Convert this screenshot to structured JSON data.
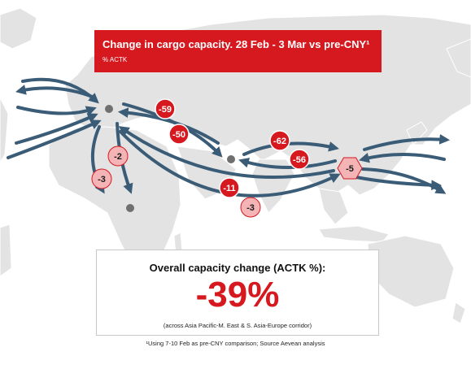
{
  "title": "Change in cargo capacity. 28 Feb - 3 Mar vs pre-CNY¹",
  "subtitle": "% ACTK",
  "summary": {
    "heading": "Overall capacity change (ACTK %):",
    "value": "-39%",
    "note": "(across Asia Pacific-M. East & S. Asia-Europe corridor)"
  },
  "footnote": "¹Using 7-10 Feb as pre-CNY comparison; Source Aevean analysis",
  "colors": {
    "title_bg": "#d6181f",
    "arrow": "#3b5c77",
    "marker_dark": "#d6181f",
    "marker_light": "#f4b4b6",
    "hub": "#6f6f6f",
    "land": "#e3e3e3"
  },
  "chart_data": {
    "type": "flow-map",
    "title": "Change in cargo capacity. 28 Feb - 3 Mar vs pre-CNY¹",
    "subtitle": "% ACTK",
    "unit": "% ACTK",
    "routes": [
      {
        "label": "-59",
        "value": -59,
        "style": "dark"
      },
      {
        "label": "-50",
        "value": -50,
        "style": "dark"
      },
      {
        "label": "-62",
        "value": -62,
        "style": "dark"
      },
      {
        "label": "-56",
        "value": -56,
        "style": "dark"
      },
      {
        "label": "-11",
        "value": -11,
        "style": "dark"
      },
      {
        "label": "-3",
        "value": -3,
        "style": "light"
      },
      {
        "label": "-2",
        "value": -2,
        "style": "light"
      },
      {
        "label": "-3",
        "value": -3,
        "style": "light"
      },
      {
        "label": "-5",
        "value": -5,
        "style": "light",
        "shape": "hexagon"
      }
    ],
    "overall_change": "-39%"
  }
}
